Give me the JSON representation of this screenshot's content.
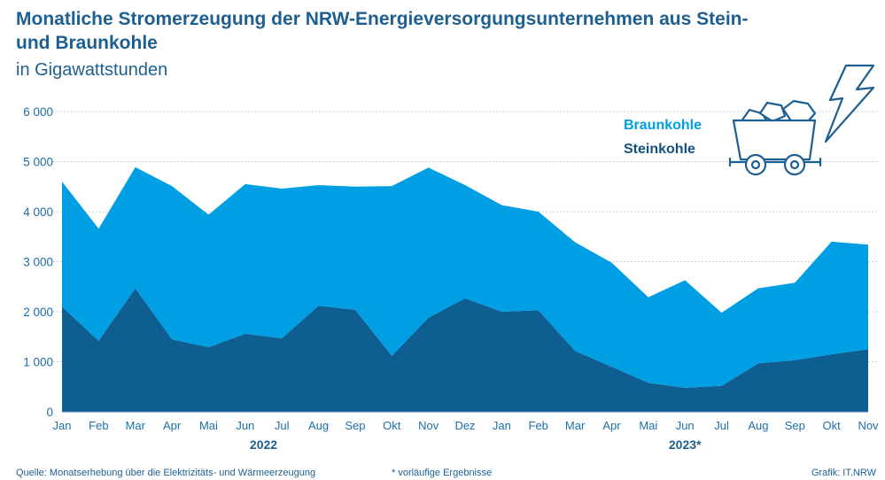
{
  "chart_data": {
    "type": "area",
    "title": "Monatliche Stromerzeugung der NRW-Energieversorgungsunternehmen aus Stein- und Braunkohle",
    "subtitle": "in Gigawattstunden",
    "categories": [
      "Jan",
      "Feb",
      "Mar",
      "Apr",
      "Mai",
      "Jun",
      "Jul",
      "Aug",
      "Sep",
      "Okt",
      "Nov",
      "Dez",
      "Jan",
      "Feb",
      "Mar",
      "Apr",
      "Mai",
      "Jun",
      "Jul",
      "Aug",
      "Sep",
      "Okt",
      "Nov"
    ],
    "years": [
      {
        "label": "2022",
        "from": 0,
        "to": 11
      },
      {
        "label": "2023*",
        "from": 12,
        "to": 22
      }
    ],
    "stacked": true,
    "series": [
      {
        "name": "Steinkohle",
        "color": "#0f5e92",
        "values": [
          2100,
          1420,
          2470,
          1450,
          1290,
          1560,
          1470,
          2120,
          2040,
          1120,
          1880,
          2270,
          2000,
          2030,
          1220,
          900,
          580,
          480,
          520,
          970,
          1030,
          1150,
          1250
        ]
      },
      {
        "name": "Braunkohle",
        "color": "#009fe3",
        "values": [
          2500,
          2240,
          2420,
          3060,
          2650,
          2990,
          2990,
          2410,
          2460,
          3390,
          3000,
          2260,
          2130,
          1970,
          2170,
          2080,
          1710,
          2150,
          1460,
          1500,
          1550,
          2250,
          2090
        ]
      }
    ],
    "ylim": [
      0,
      6000
    ],
    "yticks": [
      0,
      1000,
      2000,
      3000,
      4000,
      5000,
      6000
    ],
    "ytick_labels": [
      "0",
      "1 000",
      "2 000",
      "3 000",
      "4 000",
      "5 000",
      "6 000"
    ],
    "grid": "horizontal dotted",
    "legend": {
      "position": "top-right",
      "entries": [
        "Braunkohle",
        "Steinkohle"
      ]
    }
  },
  "footer": {
    "source": "Quelle: Monatserhebung über die Elektrizitäts- und Wärmeerzeugung",
    "note": "*  vorläufige Ergebnisse",
    "credit": "Grafik: IT.NRW"
  },
  "icons": [
    "coal-cart-icon",
    "lightning-icon"
  ]
}
